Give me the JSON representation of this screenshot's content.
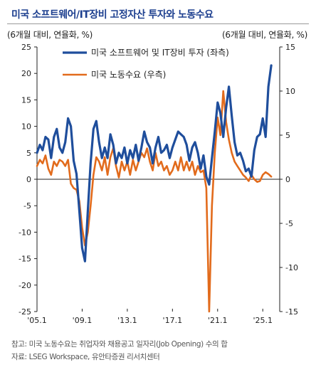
{
  "header": {
    "title": "미국 소프트웨어/IT장비 고정자산 투자와 노동수요"
  },
  "units": {
    "left": "(6개월 대비, 연율화, %)",
    "right": "(6개월 대비, 연율화, %)"
  },
  "notes": {
    "line1": "참고: 미국 노동수요는 취업자와 채용공고 일자리(Job Opening) 수의 합",
    "line2": "자료: LSEG Workspace, 유안타증권 리서치센터"
  },
  "colors": {
    "series1": "#1f4e9c",
    "series2": "#e26b1c",
    "axis": "#222222"
  },
  "chart_data": {
    "type": "line",
    "title": "미국 소프트웨어/IT장비 고정자산 투자와 노동수요",
    "xlabel": "",
    "ylabel": "(6개월 대비, 연율화, %)",
    "y2label": "(6개월 대비, 연율화, %)",
    "ylim": [
      -25,
      25
    ],
    "y2lim": [
      -15,
      15
    ],
    "xlim": [
      2005.0,
      2026.5
    ],
    "x_ticks": [
      {
        "value": 2005.0,
        "label": "'05.1"
      },
      {
        "value": 2009.0,
        "label": "'09.1"
      },
      {
        "value": 2013.0,
        "label": "'13.1"
      },
      {
        "value": 2017.0,
        "label": "'17.1"
      },
      {
        "value": 2021.0,
        "label": "'21.1"
      },
      {
        "value": 2025.0,
        "label": "'25.1"
      }
    ],
    "y_ticks": [
      25,
      20,
      15,
      10,
      5,
      0,
      -5,
      -10,
      -15,
      -20,
      -25
    ],
    "y2_ticks": [
      15,
      10,
      5,
      0,
      -5,
      -10,
      -15
    ],
    "legend_position": "top-center",
    "series": [
      {
        "name": "미국 소프트웨어 및 IT장비 투자 (좌측)",
        "axis": "left",
        "points": [
          [
            2005.0,
            5.0
          ],
          [
            2005.25,
            6.5
          ],
          [
            2005.5,
            5.5
          ],
          [
            2005.75,
            8.0
          ],
          [
            2006.0,
            7.5
          ],
          [
            2006.25,
            4.0
          ],
          [
            2006.5,
            8.0
          ],
          [
            2006.75,
            9.5
          ],
          [
            2007.0,
            6.0
          ],
          [
            2007.25,
            5.0
          ],
          [
            2007.5,
            7.0
          ],
          [
            2007.75,
            11.5
          ],
          [
            2008.0,
            10.0
          ],
          [
            2008.25,
            3.5
          ],
          [
            2008.5,
            1.0
          ],
          [
            2008.75,
            -6.0
          ],
          [
            2009.0,
            -13.0
          ],
          [
            2009.25,
            -15.5
          ],
          [
            2009.5,
            -6.0
          ],
          [
            2009.75,
            3.0
          ],
          [
            2010.0,
            9.5
          ],
          [
            2010.25,
            11.0
          ],
          [
            2010.5,
            7.0
          ],
          [
            2010.75,
            4.0
          ],
          [
            2011.0,
            6.0
          ],
          [
            2011.25,
            4.0
          ],
          [
            2011.5,
            8.5
          ],
          [
            2011.75,
            6.5
          ],
          [
            2012.0,
            3.0
          ],
          [
            2012.25,
            5.0
          ],
          [
            2012.5,
            4.0
          ],
          [
            2012.75,
            6.0
          ],
          [
            2013.0,
            3.0
          ],
          [
            2013.25,
            5.5
          ],
          [
            2013.5,
            4.0
          ],
          [
            2013.75,
            6.5
          ],
          [
            2014.0,
            3.5
          ],
          [
            2014.25,
            6.0
          ],
          [
            2014.5,
            9.0
          ],
          [
            2014.75,
            7.0
          ],
          [
            2015.0,
            6.0
          ],
          [
            2015.25,
            3.0
          ],
          [
            2015.5,
            6.0
          ],
          [
            2015.75,
            8.0
          ],
          [
            2016.0,
            5.0
          ],
          [
            2016.25,
            5.5
          ],
          [
            2016.5,
            6.5
          ],
          [
            2016.75,
            4.0
          ],
          [
            2017.0,
            6.0
          ],
          [
            2017.25,
            7.5
          ],
          [
            2017.5,
            9.0
          ],
          [
            2017.75,
            8.5
          ],
          [
            2018.0,
            8.0
          ],
          [
            2018.25,
            6.5
          ],
          [
            2018.5,
            3.5
          ],
          [
            2018.75,
            6.0
          ],
          [
            2019.0,
            7.0
          ],
          [
            2019.25,
            5.0
          ],
          [
            2019.5,
            2.0
          ],
          [
            2019.75,
            4.5
          ],
          [
            2020.0,
            0.5
          ],
          [
            2020.25,
            -1.0
          ],
          [
            2020.5,
            4.0
          ],
          [
            2020.75,
            9.0
          ],
          [
            2021.0,
            14.5
          ],
          [
            2021.25,
            12.5
          ],
          [
            2021.5,
            8.0
          ],
          [
            2021.75,
            13.5
          ],
          [
            2022.0,
            17.5
          ],
          [
            2022.25,
            12.0
          ],
          [
            2022.5,
            7.0
          ],
          [
            2022.75,
            4.5
          ],
          [
            2023.0,
            5.0
          ],
          [
            2023.25,
            3.5
          ],
          [
            2023.5,
            1.5
          ],
          [
            2023.75,
            2.0
          ],
          [
            2024.0,
            0.5
          ],
          [
            2024.25,
            5.5
          ],
          [
            2024.5,
            8.0
          ],
          [
            2024.75,
            8.5
          ],
          [
            2025.0,
            11.5
          ],
          [
            2025.25,
            8.0
          ],
          [
            2025.5,
            17.5
          ],
          [
            2025.75,
            21.5
          ]
        ]
      },
      {
        "name": "미국 노동수요 (우측)",
        "axis": "right",
        "points": [
          [
            2005.0,
            1.5
          ],
          [
            2005.25,
            2.2
          ],
          [
            2005.5,
            1.8
          ],
          [
            2005.75,
            2.7
          ],
          [
            2006.0,
            1.2
          ],
          [
            2006.25,
            0.5
          ],
          [
            2006.5,
            2.0
          ],
          [
            2006.75,
            1.5
          ],
          [
            2007.0,
            2.2
          ],
          [
            2007.25,
            2.0
          ],
          [
            2007.5,
            1.5
          ],
          [
            2007.75,
            2.2
          ],
          [
            2008.0,
            -0.5
          ],
          [
            2008.25,
            -1.0
          ],
          [
            2008.5,
            -1.2
          ],
          [
            2008.75,
            -2.5
          ],
          [
            2009.0,
            -5.5
          ],
          [
            2009.25,
            -7.5
          ],
          [
            2009.5,
            -6.0
          ],
          [
            2009.75,
            -3.0
          ],
          [
            2010.0,
            0.5
          ],
          [
            2010.25,
            2.5
          ],
          [
            2010.5,
            2.0
          ],
          [
            2010.75,
            1.0
          ],
          [
            2011.0,
            2.5
          ],
          [
            2011.25,
            0.5
          ],
          [
            2011.5,
            2.5
          ],
          [
            2011.75,
            3.5
          ],
          [
            2012.0,
            1.5
          ],
          [
            2012.25,
            0.2
          ],
          [
            2012.5,
            2.0
          ],
          [
            2012.75,
            1.0
          ],
          [
            2013.0,
            2.0
          ],
          [
            2013.25,
            0.5
          ],
          [
            2013.5,
            2.2
          ],
          [
            2013.75,
            1.0
          ],
          [
            2014.0,
            2.0
          ],
          [
            2014.25,
            3.0
          ],
          [
            2014.5,
            2.5
          ],
          [
            2014.75,
            3.5
          ],
          [
            2015.0,
            2.0
          ],
          [
            2015.25,
            1.0
          ],
          [
            2015.5,
            3.0
          ],
          [
            2015.75,
            1.5
          ],
          [
            2016.0,
            2.0
          ],
          [
            2016.25,
            1.0
          ],
          [
            2016.5,
            1.5
          ],
          [
            2016.75,
            0.5
          ],
          [
            2017.0,
            1.0
          ],
          [
            2017.25,
            2.0
          ],
          [
            2017.5,
            1.0
          ],
          [
            2017.75,
            2.5
          ],
          [
            2018.0,
            1.0
          ],
          [
            2018.25,
            2.0
          ],
          [
            2018.5,
            1.0
          ],
          [
            2018.75,
            2.0
          ],
          [
            2019.0,
            0.5
          ],
          [
            2019.25,
            1.5
          ],
          [
            2019.5,
            0.8
          ],
          [
            2019.75,
            1.0
          ],
          [
            2020.0,
            -1.0
          ],
          [
            2020.25,
            -15.0
          ],
          [
            2020.5,
            -3.0
          ],
          [
            2020.75,
            3.0
          ],
          [
            2021.0,
            7.0
          ],
          [
            2021.25,
            5.0
          ],
          [
            2021.5,
            10.0
          ],
          [
            2021.75,
            6.5
          ],
          [
            2022.0,
            4.5
          ],
          [
            2022.25,
            3.0
          ],
          [
            2022.5,
            2.0
          ],
          [
            2022.75,
            1.5
          ],
          [
            2023.0,
            1.0
          ],
          [
            2023.25,
            0.5
          ],
          [
            2023.5,
            0.2
          ],
          [
            2023.75,
            -0.2
          ],
          [
            2024.0,
            0.5
          ],
          [
            2024.25,
            0.0
          ],
          [
            2024.5,
            -0.3
          ],
          [
            2024.75,
            -0.2
          ],
          [
            2025.0,
            0.5
          ],
          [
            2025.25,
            0.8
          ],
          [
            2025.5,
            0.6
          ],
          [
            2025.75,
            0.3
          ]
        ]
      }
    ]
  }
}
